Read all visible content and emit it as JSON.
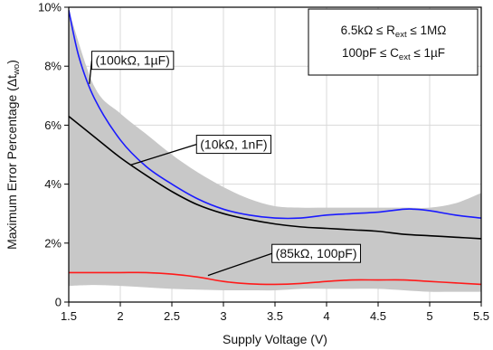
{
  "chart_data": {
    "type": "line",
    "title": "",
    "xlabel": "Supply Voltage (V)",
    "ylabel": "Maximum Error Percentage (Δt",
    "ylabel_sub": "wo",
    "ylabel_end": ")",
    "xlim": [
      1.5,
      5.5
    ],
    "ylim": [
      0,
      10
    ],
    "x_ticks": [
      1.5,
      2,
      2.5,
      3,
      3.5,
      4,
      4.5,
      5,
      5.5
    ],
    "x_tick_labels": [
      "1.5",
      "2",
      "2.5",
      "3",
      "3.5",
      "4",
      "4.5",
      "5",
      "5.5"
    ],
    "y_ticks": [
      0,
      2,
      4,
      6,
      8,
      10
    ],
    "y_tick_labels": [
      "0",
      "2%",
      "4%",
      "6%",
      "8%",
      "10%"
    ],
    "grid": true,
    "note": {
      "line1": {
        "a": "6.5kΩ ≤ R",
        "sub": "ext",
        "b": " ≤ 1MΩ"
      },
      "line2": {
        "a": "100pF ≤ C",
        "sub": "ext",
        "b": " ≤ 1µF"
      }
    },
    "band": {
      "color": "#c8c8c8",
      "x": [
        1.5,
        1.75,
        2,
        2.25,
        2.5,
        2.75,
        3,
        3.25,
        3.5,
        3.75,
        4,
        4.25,
        4.5,
        4.75,
        5,
        5.25,
        5.5
      ],
      "upper": [
        9.9,
        7.3,
        6.4,
        5.7,
        5.0,
        4.4,
        3.9,
        3.5,
        3.25,
        3.2,
        3.2,
        3.2,
        3.2,
        3.2,
        3.2,
        3.35,
        3.7
      ],
      "lower": [
        0.55,
        0.58,
        0.55,
        0.5,
        0.45,
        0.42,
        0.4,
        0.4,
        0.4,
        0.45,
        0.45,
        0.45,
        0.45,
        0.4,
        0.35,
        0.35,
        0.35
      ]
    },
    "series": [
      {
        "label": "(100kΩ, 1µF)",
        "color": "#1a1aff",
        "x": [
          1.5,
          1.6,
          1.75,
          2,
          2.25,
          2.5,
          2.75,
          3,
          3.25,
          3.5,
          3.75,
          4,
          4.25,
          4.5,
          4.75,
          4.85,
          5,
          5.25,
          5.5
        ],
        "y": [
          9.9,
          8.3,
          6.9,
          5.5,
          4.6,
          4.0,
          3.5,
          3.15,
          2.95,
          2.85,
          2.85,
          2.95,
          3.0,
          3.05,
          3.15,
          3.15,
          3.1,
          2.95,
          2.85
        ]
      },
      {
        "label": "(10kΩ, 1nF)",
        "color": "#000000",
        "x": [
          1.5,
          1.75,
          2,
          2.25,
          2.5,
          2.75,
          3,
          3.25,
          3.5,
          3.75,
          4,
          4.25,
          4.5,
          4.75,
          5,
          5.25,
          5.5
        ],
        "y": [
          6.3,
          5.6,
          4.9,
          4.3,
          3.75,
          3.3,
          3.0,
          2.8,
          2.65,
          2.55,
          2.5,
          2.45,
          2.4,
          2.3,
          2.25,
          2.2,
          2.15
        ]
      },
      {
        "label": "(85kΩ, 100pF)",
        "color": "#ff1a1a",
        "x": [
          1.5,
          1.75,
          2,
          2.25,
          2.5,
          2.75,
          3,
          3.25,
          3.5,
          3.75,
          4,
          4.25,
          4.5,
          4.75,
          5,
          5.25,
          5.5
        ],
        "y": [
          1.0,
          1.0,
          1.0,
          1.0,
          0.95,
          0.85,
          0.7,
          0.62,
          0.6,
          0.63,
          0.7,
          0.75,
          0.75,
          0.75,
          0.7,
          0.65,
          0.6
        ]
      }
    ],
    "callouts": [
      {
        "series": 0,
        "text": "(100kΩ, 1µF)",
        "point_x": 1.7,
        "point_y": 7.4,
        "text_x": 2.12,
        "text_y": 8.2
      },
      {
        "series": 1,
        "text": "(10kΩ, 1nF)",
        "point_x": 2.1,
        "point_y": 4.65,
        "text_x": 3.1,
        "text_y": 5.35
      },
      {
        "series": 2,
        "text": "(85kΩ, 100pF)",
        "point_x": 2.85,
        "point_y": 0.9,
        "text_x": 3.9,
        "text_y": 1.65
      }
    ]
  }
}
